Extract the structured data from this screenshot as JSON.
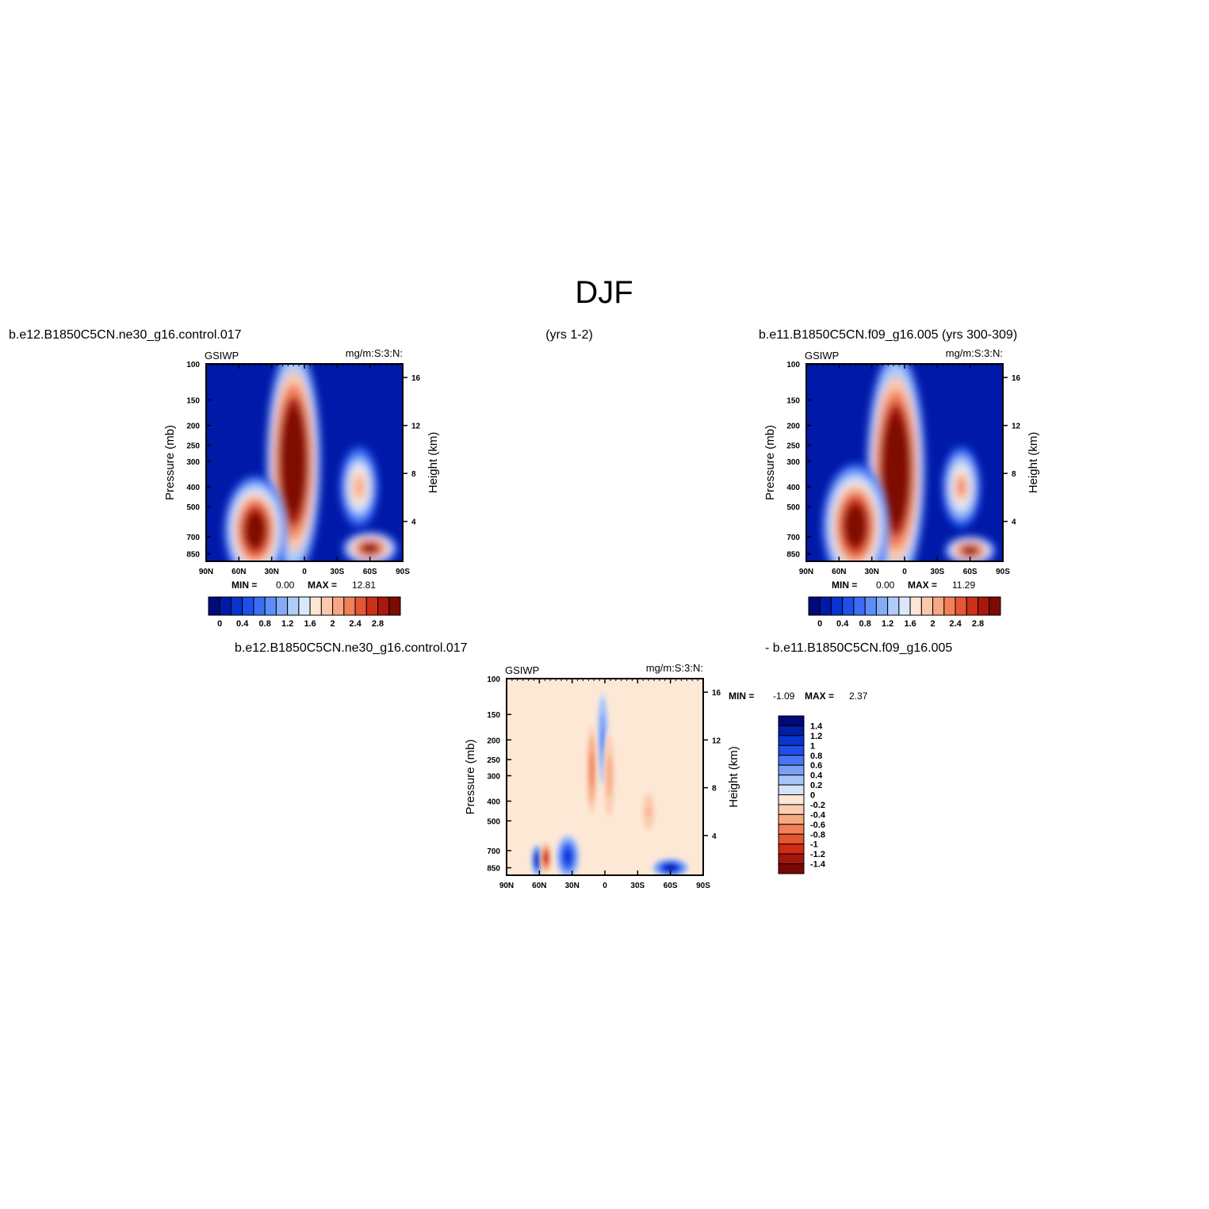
{
  "figure": {
    "title": "DJF",
    "left_case": "b.e12.B1850C5CN.ne30_g16.control.017",
    "left_years": "(yrs 1-2)",
    "right_case_label": "b.e11.B1850C5CN.f09_g16.005 (yrs 300-309)",
    "diff_left_label": "b.e12.B1850C5CN.ne30_g16.control.017",
    "diff_right_label": "- b.e11.B1850C5CN.f09_g16.005"
  },
  "colors": {
    "abs_scale": [
      "#000a78",
      "#0019a8",
      "#0a32cc",
      "#1f4fe8",
      "#3b6ef5",
      "#5e8cf8",
      "#86abf6",
      "#b0ccf8",
      "#dae8fb",
      "#fde6d4",
      "#fbc8ac",
      "#f7a784",
      "#f1805a",
      "#e55536",
      "#cc3018",
      "#a8180c",
      "#7e0a04"
    ],
    "diff_scale": [
      "#00087a",
      "#001fa6",
      "#0835d0",
      "#1f4ee8",
      "#4a76f4",
      "#7aa0f6",
      "#a8c3f8",
      "#d4e4fb",
      "#fde8d6",
      "#fbccb0",
      "#f7a982",
      "#f27f56",
      "#e5562f",
      "#cf2d12",
      "#a5150a",
      "#7a0804"
    ]
  },
  "chart_data": [
    {
      "id": "top-left",
      "type": "heatmap",
      "variable": "GSIWP",
      "units": "mg/m:S:3:N:",
      "ylabel": "Pressure (mb)",
      "y2label": "Height (km)",
      "x_ticks": [
        "90N",
        "60N",
        "30N",
        "0",
        "30S",
        "60S",
        "90S"
      ],
      "y_ticks": [
        "100",
        "150",
        "200",
        "250",
        "300",
        "400",
        "500",
        "700",
        "850"
      ],
      "y2_ticks": [
        "16",
        "12",
        "8",
        "4"
      ],
      "min_label": "MIN =",
      "min_value": "0.00",
      "max_label": "MAX =",
      "max_value": "12.81",
      "colorbar_labels": [
        "0",
        "0.4",
        "0.8",
        "1.2",
        "1.6",
        "2",
        "2.4",
        "2.8"
      ],
      "features": [
        {
          "lat": 10,
          "plev": 300,
          "value": 4.0,
          "lat_half_width": 14,
          "plev_half_width": 260
        },
        {
          "lat": 45,
          "plev": 650,
          "value": 3.2,
          "lat_half_width": 16,
          "plev_half_width": 250
        },
        {
          "lat": -60,
          "plev": 800,
          "value": 3.0,
          "lat_half_width": 14,
          "plev_half_width": 100
        },
        {
          "lat": -50,
          "plev": 400,
          "value": 1.8,
          "lat_half_width": 10,
          "plev_half_width": 120
        }
      ]
    },
    {
      "id": "top-right",
      "type": "heatmap",
      "variable": "GSIWP",
      "units": "mg/m:S:3:N:",
      "ylabel": "Pressure (mb)",
      "y2label": "Height (km)",
      "x_ticks": [
        "90N",
        "60N",
        "30N",
        "0",
        "30S",
        "60S",
        "90S"
      ],
      "y_ticks": [
        "100",
        "150",
        "200",
        "250",
        "300",
        "400",
        "500",
        "700",
        "850"
      ],
      "y2_ticks": [
        "16",
        "12",
        "8",
        "4"
      ],
      "min_label": "MIN =",
      "min_value": "0.00",
      "max_label": "MAX =",
      "max_value": "11.29",
      "colorbar_labels": [
        "0",
        "0.4",
        "0.8",
        "1.2",
        "1.6",
        "2",
        "2.4",
        "2.8"
      ],
      "features": [
        {
          "lat": 8,
          "plev": 330,
          "value": 4.0,
          "lat_half_width": 15,
          "plev_half_width": 260
        },
        {
          "lat": 45,
          "plev": 620,
          "value": 3.3,
          "lat_half_width": 17,
          "plev_half_width": 270
        },
        {
          "lat": -60,
          "plev": 820,
          "value": 3.0,
          "lat_half_width": 13,
          "plev_half_width": 90
        },
        {
          "lat": -52,
          "plev": 400,
          "value": 1.9,
          "lat_half_width": 10,
          "plev_half_width": 120
        }
      ]
    },
    {
      "id": "difference",
      "type": "heatmap",
      "variable": "GSIWP",
      "units": "mg/m:S:3:N:",
      "ylabel": "Pressure (mb)",
      "y2label": "Height (km)",
      "x_ticks": [
        "90N",
        "60N",
        "30N",
        "0",
        "30S",
        "60S",
        "90S"
      ],
      "y_ticks": [
        "100",
        "150",
        "200",
        "250",
        "300",
        "400",
        "500",
        "700",
        "850"
      ],
      "y2_ticks": [
        "16",
        "12",
        "8",
        "4"
      ],
      "min_label": "MIN =",
      "min_value": "-1.09",
      "max_label": "MAX =",
      "max_value": "2.37",
      "colorbar_labels": [
        "1.4",
        "1.2",
        "1",
        "0.8",
        "0.6",
        "0.4",
        "0.2",
        "0",
        "-0.2",
        "-0.4",
        "-0.6",
        "-0.8",
        "-1",
        "-1.2",
        "-1.4"
      ],
      "features": [
        {
          "lat": 62,
          "plev": 780,
          "value": 1.2,
          "lat_half_width": 3,
          "plev_half_width": 90
        },
        {
          "lat": 54,
          "plev": 760,
          "value": -1.1,
          "lat_half_width": 3,
          "plev_half_width": 90
        },
        {
          "lat": 34,
          "plev": 750,
          "value": 1.0,
          "lat_half_width": 6,
          "plev_half_width": 120
        },
        {
          "lat": -60,
          "plev": 850,
          "value": 1.2,
          "lat_half_width": 9,
          "plev_half_width": 60
        },
        {
          "lat": 2,
          "plev": 200,
          "value": 0.5,
          "lat_half_width": 3,
          "plev_half_width": 70
        },
        {
          "lat": 12,
          "plev": 280,
          "value": -0.6,
          "lat_half_width": 3,
          "plev_half_width": 100
        },
        {
          "lat": -4,
          "plev": 300,
          "value": -0.4,
          "lat_half_width": 3,
          "plev_half_width": 100
        },
        {
          "lat": -40,
          "plev": 450,
          "value": -0.3,
          "lat_half_width": 4,
          "plev_half_width": 80
        }
      ]
    }
  ]
}
